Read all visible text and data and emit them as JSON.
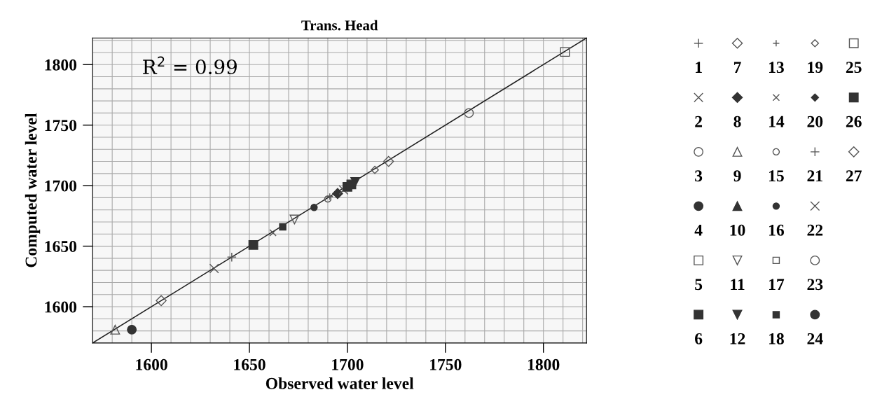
{
  "chart_data": {
    "type": "scatter",
    "title": "Trans. Head",
    "xlabel": "Observed water level",
    "ylabel": "Computed water level",
    "annotations": [
      "R$^{2}$ = 0.99"
    ],
    "xlim": [
      1570,
      1822
    ],
    "ylim": [
      1570,
      1822
    ],
    "xticks": [
      1600,
      1650,
      1700,
      1750,
      1800
    ],
    "yticks": [
      1600,
      1650,
      1700,
      1750,
      1800
    ],
    "grid": true,
    "legend": "right",
    "series": [
      {
        "name": "1",
        "color": "#555555",
        "x": [
          1641
        ],
        "values": [
          1641
        ]
      },
      {
        "name": "2",
        "color": "#555555",
        "x": [
          1632
        ],
        "values": [
          1631.5
        ]
      },
      {
        "name": "3",
        "color": "#555555",
        "x": [
          1762
        ],
        "values": [
          1760
        ]
      },
      {
        "name": "4",
        "color": "#333333",
        "x": [
          1590
        ],
        "values": [
          1581
        ]
      },
      {
        "name": "5",
        "color": "#555555",
        "x": [
          1811
        ],
        "values": [
          1810.5
        ]
      },
      {
        "name": "6",
        "color": "#333333",
        "x": [
          1652
        ],
        "values": [
          1651
        ]
      },
      {
        "name": "7",
        "color": "#555555",
        "x": [
          1721
        ],
        "values": [
          1720
        ]
      },
      {
        "name": "8",
        "color": "#333333",
        "x": [
          1695
        ],
        "values": [
          1693.5
        ]
      },
      {
        "name": "9",
        "color": "#555555",
        "x": [
          1581.5
        ],
        "values": [
          1581
        ]
      },
      {
        "name": "10",
        "color": "#333333"
      },
      {
        "name": "11",
        "color": "#555555",
        "x": [
          1673
        ],
        "values": [
          1672
        ]
      },
      {
        "name": "12",
        "color": "#333333",
        "x": [
          1704
        ],
        "values": [
          1703
        ]
      },
      {
        "name": "13",
        "color": "#555555",
        "x": [
          1691
        ],
        "values": [
          1691
        ]
      },
      {
        "name": "14",
        "color": "#555555",
        "x": [
          1662
        ],
        "values": [
          1661
        ]
      },
      {
        "name": "15",
        "color": "#555555",
        "x": [
          1690
        ],
        "values": [
          1689
        ]
      },
      {
        "name": "16",
        "color": "#333333",
        "x": [
          1683
        ],
        "values": [
          1682
        ]
      },
      {
        "name": "17",
        "color": "#555555"
      },
      {
        "name": "18",
        "color": "#333333",
        "x": [
          1667
        ],
        "values": [
          1666
        ]
      },
      {
        "name": "19",
        "color": "#555555",
        "x": [
          1714
        ],
        "values": [
          1713
        ]
      },
      {
        "name": "20",
        "color": "#333333"
      },
      {
        "name": "21",
        "color": "#555555"
      },
      {
        "name": "22",
        "color": "#555555",
        "x": [
          1698
        ],
        "values": [
          1696.5
        ]
      },
      {
        "name": "23",
        "color": "#555555"
      },
      {
        "name": "24",
        "color": "#333333"
      },
      {
        "name": "25",
        "color": "#555555"
      },
      {
        "name": "26",
        "color": "#333333",
        "x": [
          1700,
          1702
        ],
        "values": [
          1699,
          1701
        ]
      },
      {
        "name": "27",
        "color": "#555555",
        "x": [
          1605
        ],
        "values": [
          1605
        ]
      },
      {
        "type": "line",
        "color": "#222222",
        "x": [
          1570,
          1822
        ],
        "values": [
          1570,
          1822
        ]
      }
    ]
  }
}
